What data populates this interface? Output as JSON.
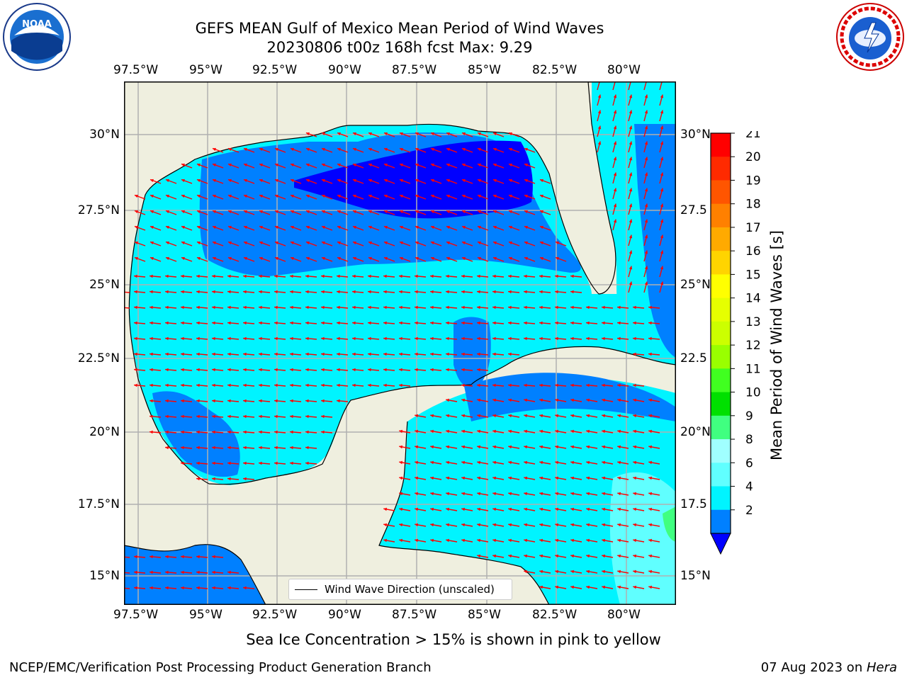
{
  "title_line1": "GEFS MEAN Gulf of Mexico Mean Period of Wind Waves",
  "title_line2": "20230806 t00z 168h fcst   Max: 9.29",
  "lon_ticks": [
    "97.5°W",
    "95°W",
    "92.5°W",
    "90°W",
    "87.5°W",
    "85°W",
    "82.5°W",
    "80°W"
  ],
  "lat_ticks": [
    "30°N",
    "27.5°N",
    "25°N",
    "22.5°N",
    "20°N",
    "17.5°N",
    "15°N"
  ],
  "lat_ticks_right": [
    "30°N",
    "27.5",
    "25°N",
    "22.5",
    "20°N",
    "17.5",
    "15°N"
  ],
  "legend_label": "Wind Wave Direction (unscaled)",
  "colorbar": {
    "label": "Mean Period of Wind Waves [s]",
    "ticks": [
      "21",
      "20",
      "19",
      "18",
      "17",
      "16",
      "15",
      "14",
      "13",
      "12",
      "11",
      "10",
      "9",
      "8",
      "6",
      "4",
      "2"
    ],
    "colors": [
      "#ff0000",
      "#ff2a00",
      "#ff5500",
      "#ff8000",
      "#ffaa00",
      "#ffd400",
      "#ffff00",
      "#e6ff00",
      "#ccff00",
      "#99ff00",
      "#40ff20",
      "#00e000",
      "#40ff80",
      "#a0ffff",
      "#60ffff",
      "#00f4ff",
      "#0080ff"
    ],
    "extend_color": "#0000ff"
  },
  "sea_ice_note": "Sea Ice Concentration > 15% is shown in pink to yellow",
  "footer_left": "NCEP/EMC/Verification Post Processing Product Generation Branch",
  "footer_right_date": "07 Aug 2023 on ",
  "footer_right_machine": "Hera",
  "logos": {
    "left": "noaa-logo",
    "right": "nws-logo"
  },
  "colors": {
    "land": "#efefdf",
    "arrow": "#ff0000",
    "grid": "#b0b0b0"
  }
}
